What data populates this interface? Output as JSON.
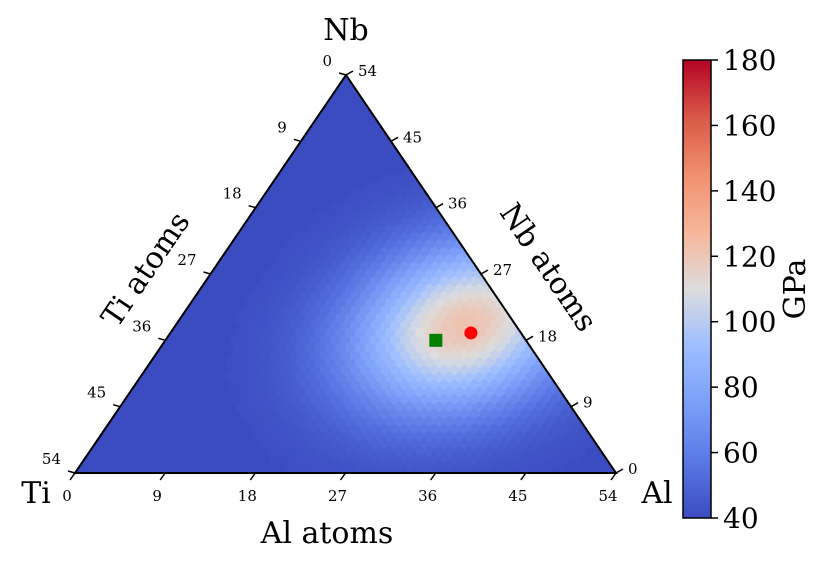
{
  "chart_data": {
    "type": "heatmap",
    "subtype": "ternary",
    "corners": {
      "top": "Nb",
      "left": "Ti",
      "right": "Al"
    },
    "axes": {
      "bottom": {
        "label": "Al atoms",
        "ticks": [
          "0",
          "9",
          "18",
          "27",
          "36",
          "45",
          "54"
        ]
      },
      "left": {
        "label": "Ti atoms",
        "ticks": [
          "0",
          "9",
          "18",
          "27",
          "36",
          "45",
          "54"
        ]
      },
      "right": {
        "label": "Nb atoms",
        "ticks": [
          "0",
          "9",
          "18",
          "27",
          "36",
          "45",
          "54"
        ]
      }
    },
    "total_atoms": 54,
    "field": {
      "peak": {
        "Al": 29,
        "Nb": 20,
        "Ti": 5
      },
      "max_value": 122,
      "min_value": 40
    },
    "markers": [
      {
        "shape": "circle",
        "color": "#ff0000",
        "Al": 30,
        "Nb": 19,
        "Ti": 5
      },
      {
        "shape": "square",
        "color": "#008000",
        "Al": 27,
        "Nb": 18,
        "Ti": 9
      }
    ],
    "colorbar": {
      "label": "GPa",
      "colormap": "coolwarm",
      "range": [
        40,
        180
      ],
      "ticks": [
        "40",
        "60",
        "80",
        "100",
        "120",
        "140",
        "160",
        "180"
      ]
    }
  }
}
